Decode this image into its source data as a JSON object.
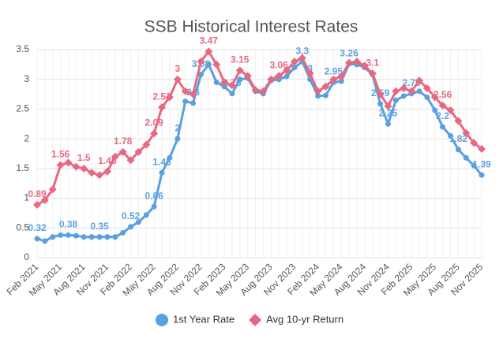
{
  "chart_data": {
    "type": "line",
    "title": "SSB Historical Interest Rates",
    "categories": [
      "Feb 2021",
      null,
      null,
      "May 2021",
      null,
      null,
      "Aug 2021",
      null,
      null,
      "Nov 2021",
      null,
      null,
      "Feb 2022",
      null,
      null,
      "May 2022",
      null,
      null,
      "Aug 2022",
      null,
      null,
      "Nov 2022",
      null,
      null,
      "Feb 2023",
      null,
      null,
      "May 2023",
      null,
      null,
      "Aug 2023",
      null,
      null,
      "Nov 2023",
      null,
      null,
      "Feb 2024",
      null,
      null,
      "May 2024",
      null,
      null,
      "Aug 2024",
      null,
      null,
      "Nov 2024",
      null,
      null,
      "Feb 2025",
      null,
      null,
      "May 2025",
      null,
      null,
      "Aug 2025",
      null,
      null,
      "Nov 2025"
    ],
    "series": [
      {
        "name": "1st Year Rate",
        "color": "#5aa0e0",
        "marker": "circle",
        "values": [
          0.32,
          0.28,
          0.35,
          0.38,
          0.38,
          0.37,
          0.35,
          0.35,
          0.35,
          0.35,
          0.35,
          0.42,
          0.52,
          0.6,
          0.72,
          0.86,
          1.43,
          1.68,
          2,
          2.63,
          2.6,
          3.08,
          3.25,
          2.95,
          2.88,
          2.76,
          3,
          3.02,
          2.8,
          2.76,
          2.98,
          3,
          3.05,
          3.2,
          3.3,
          3,
          2.72,
          2.73,
          2.95,
          2.97,
          3.26,
          3.25,
          3.2,
          3.08,
          2.59,
          2.25,
          2.65,
          2.72,
          2.76,
          2.8,
          2.7,
          2.48,
          2.2,
          2.05,
          1.82,
          1.68,
          1.55,
          1.39
        ],
        "value_labels": [
          "0.32",
          null,
          null,
          null,
          "0.38",
          null,
          null,
          null,
          "0.35",
          null,
          null,
          null,
          "0.52",
          null,
          null,
          "0.86",
          "1.43",
          null,
          "2",
          null,
          "2.6",
          "3.08",
          null,
          null,
          null,
          "2.76",
          null,
          null,
          null,
          null,
          null,
          null,
          null,
          null,
          "3.3",
          "3",
          null,
          null,
          "2.95",
          null,
          "3.26",
          null,
          null,
          null,
          "2.59",
          "2.25",
          null,
          null,
          "2.76",
          null,
          null,
          null,
          "2.2",
          null,
          "1.82",
          null,
          null,
          "1.39"
        ]
      },
      {
        "name": "Avg 10-yr Return",
        "color": "#e8687f",
        "marker": "diamond",
        "values": [
          0.89,
          0.97,
          1.15,
          1.56,
          1.6,
          1.53,
          1.5,
          1.43,
          1.39,
          1.45,
          1.7,
          1.78,
          1.64,
          1.78,
          1.9,
          2.09,
          2.53,
          2.7,
          3,
          2.8,
          2.75,
          3.3,
          3.47,
          3.25,
          2.95,
          2.9,
          3.15,
          3.06,
          2.82,
          2.8,
          3,
          3.06,
          3.15,
          3.3,
          3.36,
          3.1,
          2.8,
          2.88,
          3,
          3.05,
          3.28,
          3.3,
          3.23,
          3.1,
          2.75,
          2.55,
          2.8,
          2.85,
          2.8,
          2.98,
          2.85,
          2.7,
          2.56,
          2.48,
          2.3,
          2.1,
          1.93,
          1.83
        ],
        "value_labels": [
          "0.89",
          null,
          null,
          "1.56",
          null,
          null,
          "1.5",
          null,
          null,
          "1.45",
          null,
          "1.78",
          null,
          null,
          null,
          "2.09",
          "2.53",
          null,
          "3",
          null,
          null,
          null,
          "3.47",
          null,
          null,
          null,
          "3.15",
          null,
          null,
          null,
          null,
          "3.06",
          null,
          null,
          null,
          null,
          null,
          null,
          null,
          null,
          null,
          null,
          null,
          "3.1",
          null,
          null,
          null,
          null,
          null,
          null,
          null,
          null,
          "2.56",
          null,
          null,
          null,
          null,
          null
        ]
      }
    ],
    "ylim": [
      0,
      3.5
    ],
    "yticks": [
      0,
      0.5,
      1,
      1.5,
      2,
      2.5,
      3,
      3.5
    ],
    "grid": true,
    "legend": "bottom"
  }
}
